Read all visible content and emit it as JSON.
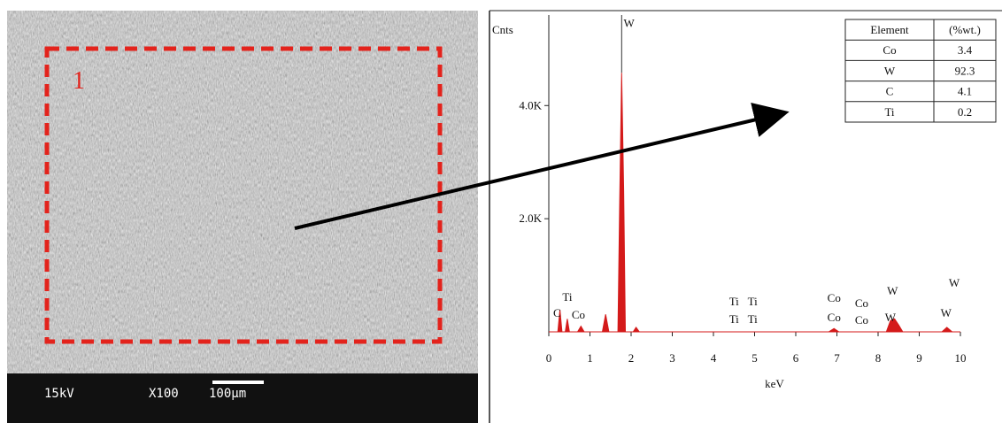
{
  "sem_image": {
    "voltage": "15kV",
    "magnification": "X100",
    "scale_bar": "100µm",
    "region_label": "1"
  },
  "chart_data": {
    "type": "area",
    "y_label": "Cnts",
    "x_label": "keV",
    "color": "#d41a1a",
    "x": [
      0,
      0.22,
      0.27,
      0.32,
      0.4,
      0.45,
      0.5,
      0.7,
      0.78,
      0.86,
      1.3,
      1.38,
      1.46,
      1.68,
      1.72,
      1.77,
      1.82,
      1.86,
      1.95,
      2.05,
      2.12,
      2.2,
      2.5,
      6.8,
      6.93,
      7.05,
      8.2,
      8.3,
      8.4,
      8.5,
      8.6,
      9.55,
      9.67,
      9.8,
      10
    ],
    "values": [
      0,
      0,
      390,
      0,
      0,
      230,
      0,
      0,
      100,
      0,
      0,
      310,
      0,
      0,
      2200,
      4580,
      2500,
      0,
      0,
      0,
      80,
      0,
      0,
      0,
      60,
      0,
      0,
      200,
      230,
      120,
      0,
      0,
      80,
      0,
      0
    ],
    "xlim": [
      0,
      10
    ],
    "xticks": [
      0,
      1,
      2,
      3,
      4,
      5,
      6,
      7,
      8,
      9,
      10
    ],
    "ylim": [
      0,
      5600
    ],
    "yticks": [
      {
        "value": 2000,
        "label": "2.0K"
      },
      {
        "value": 4000,
        "label": "4.0K"
      }
    ],
    "annotations": [
      {
        "text": "W",
        "x": 1.95,
        "y": 5390
      },
      {
        "text": "Ti",
        "x": 0.45,
        "y": 547
      },
      {
        "text": "C",
        "x": 0.2,
        "y": 266
      },
      {
        "text": "Co",
        "x": 0.72,
        "y": 234
      },
      {
        "text": "Ti",
        "x": 4.5,
        "y": 469
      },
      {
        "text": "Ti",
        "x": 4.95,
        "y": 469
      },
      {
        "text": "Ti",
        "x": 4.5,
        "y": 156
      },
      {
        "text": "Ti",
        "x": 4.95,
        "y": 156
      },
      {
        "text": "Co",
        "x": 6.93,
        "y": 531
      },
      {
        "text": "Co",
        "x": 6.93,
        "y": 188
      },
      {
        "text": "Co",
        "x": 7.6,
        "y": 438
      },
      {
        "text": "Co",
        "x": 7.6,
        "y": 141
      },
      {
        "text": "W",
        "x": 8.35,
        "y": 656
      },
      {
        "text": "W",
        "x": 8.3,
        "y": 188
      },
      {
        "text": "W",
        "x": 9.85,
        "y": 797
      },
      {
        "text": "W",
        "x": 9.65,
        "y": 266
      }
    ]
  },
  "table": {
    "header": [
      "Element",
      "(%wt.)"
    ],
    "rows": [
      [
        "Co",
        "3.4"
      ],
      [
        "W",
        "92.3"
      ],
      [
        "C",
        "4.1"
      ],
      [
        "Ti",
        "0.2"
      ]
    ]
  }
}
